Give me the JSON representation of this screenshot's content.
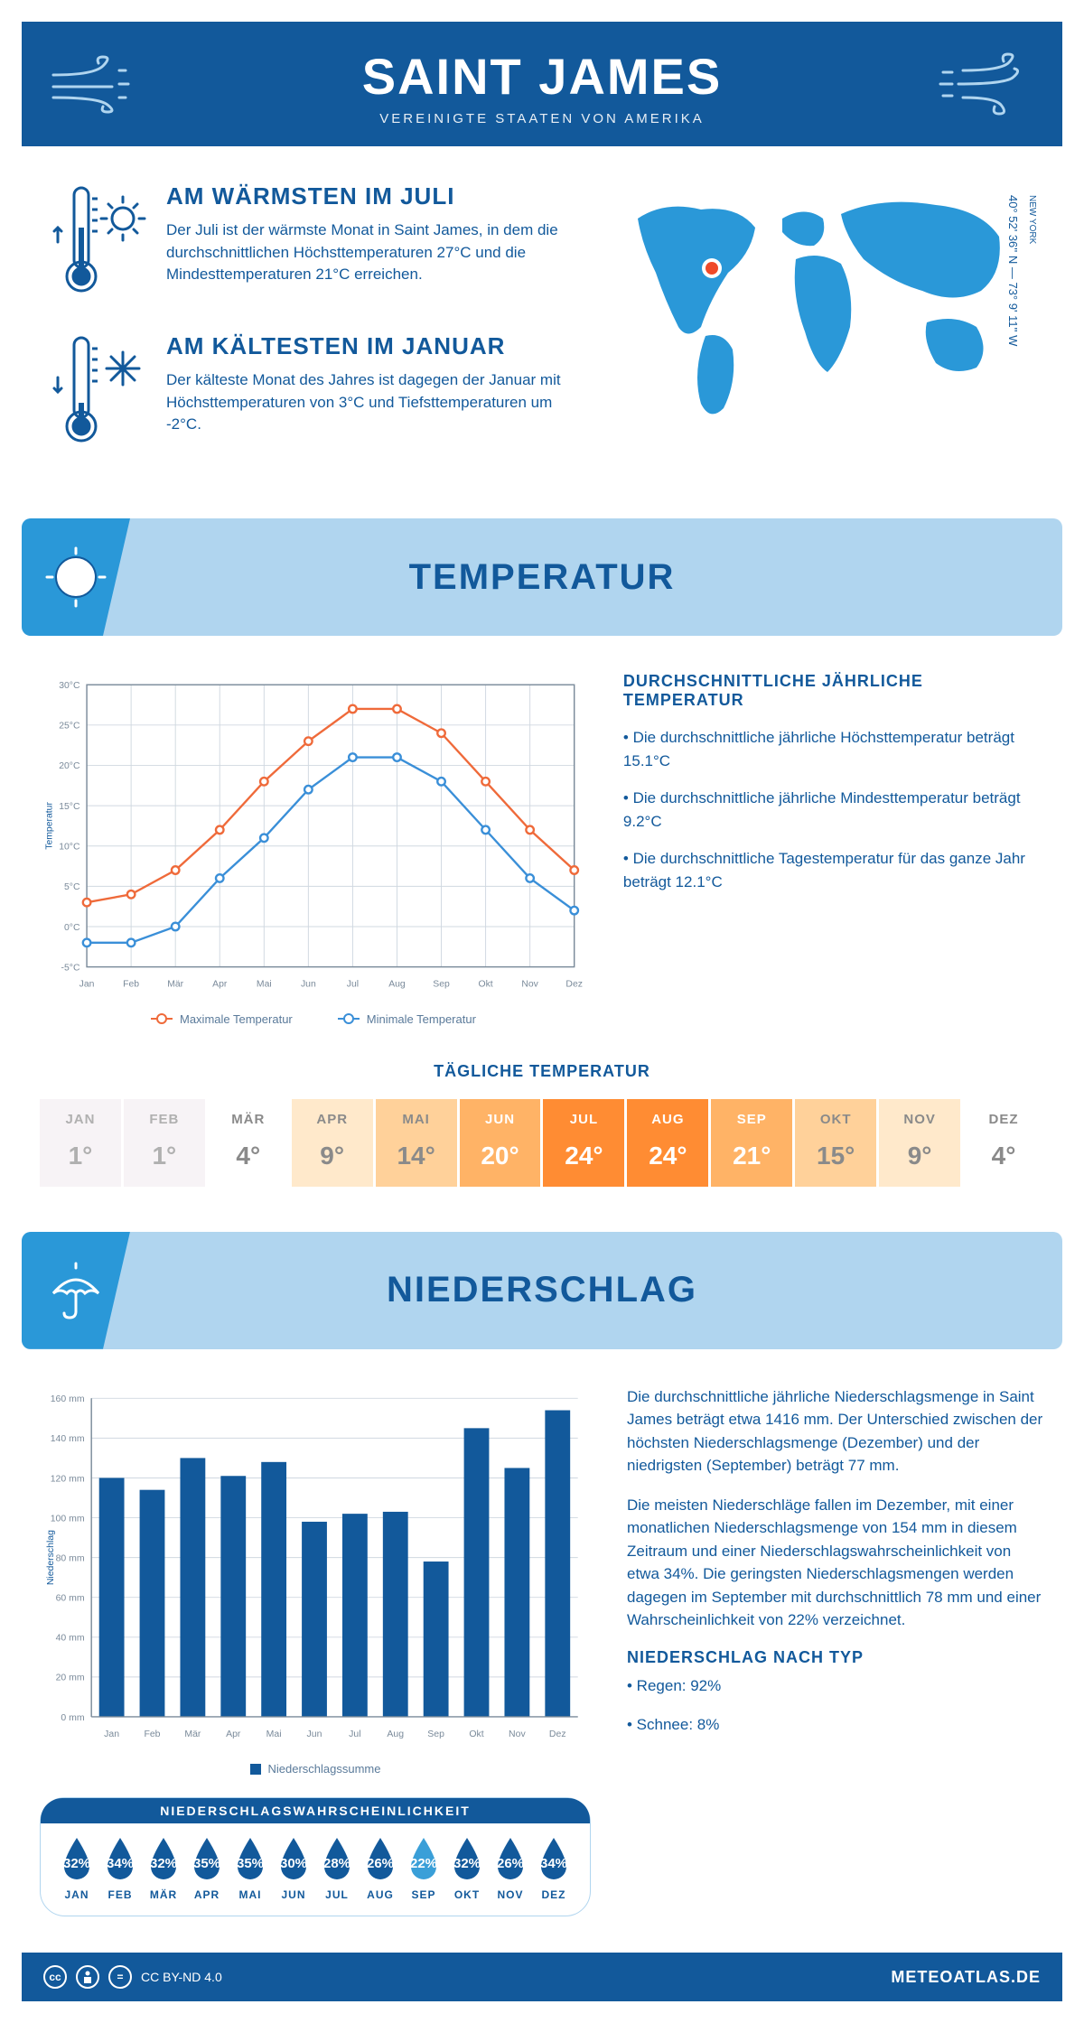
{
  "header": {
    "title": "SAINT JAMES",
    "subtitle": "VEREINIGTE STAATEN VON AMERIKA"
  },
  "coords": {
    "lat": "40° 52' 36'' N — 73° 9' 11'' W",
    "state": "NEW YORK"
  },
  "warmest": {
    "title": "AM WÄRMSTEN IM JULI",
    "text": "Der Juli ist der wärmste Monat in Saint James, in dem die durchschnittlichen Höchsttemperaturen 27°C und die Mindesttemperaturen 21°C erreichen."
  },
  "coldest": {
    "title": "AM KÄLTESTEN IM JANUAR",
    "text": "Der kälteste Monat des Jahres ist dagegen der Januar mit Höchsttemperaturen von 3°C und Tiefsttemperaturen um -2°C."
  },
  "temperature": {
    "section_title": "TEMPERATUR",
    "avg_title": "DURCHSCHNITTLICHE JÄHRLICHE TEMPERATUR",
    "bullets": [
      "• Die durchschnittliche jährliche Höchsttemperatur beträgt 15.1°C",
      "• Die durchschnittliche jährliche Mindesttemperatur beträgt 9.2°C",
      "• Die durchschnittliche Tagestemperatur für das ganze Jahr beträgt 12.1°C"
    ],
    "chart": {
      "type": "line",
      "months": [
        "Jan",
        "Feb",
        "Mär",
        "Apr",
        "Mai",
        "Jun",
        "Jul",
        "Aug",
        "Sep",
        "Okt",
        "Nov",
        "Dez"
      ],
      "max": [
        3,
        4,
        7,
        12,
        18,
        23,
        27,
        27,
        24,
        18,
        12,
        7
      ],
      "min": [
        -2,
        -2,
        0,
        6,
        11,
        17,
        21,
        21,
        18,
        12,
        6,
        2
      ],
      "ylim": [
        -5,
        30
      ],
      "ytick_step": 5,
      "max_color": "#ef6a3a",
      "min_color": "#3a8fd8",
      "grid_color": "#d0d8e0",
      "ylabel": "Temperatur",
      "max_label": "Maximale Temperatur",
      "min_label": "Minimale Temperatur"
    },
    "daily": {
      "title": "TÄGLICHE TEMPERATUR",
      "months": [
        "JAN",
        "FEB",
        "MÄR",
        "APR",
        "MAI",
        "JUN",
        "JUL",
        "AUG",
        "SEP",
        "OKT",
        "NOV",
        "DEZ"
      ],
      "values": [
        "1°",
        "1°",
        "4°",
        "9°",
        "14°",
        "20°",
        "24°",
        "24°",
        "21°",
        "15°",
        "9°",
        "4°"
      ],
      "bg_colors": [
        "#f7f3f6",
        "#f7f3f6",
        "#ffffff",
        "#ffe9cb",
        "#ffd19a",
        "#ffb366",
        "#ff8c33",
        "#ff8c33",
        "#ffb366",
        "#ffd19a",
        "#ffe9cb",
        "#ffffff"
      ],
      "text_colors": [
        "#b0b0b0",
        "#b0b0b0",
        "#8a8a8a",
        "#8a8a8a",
        "#8a8a8a",
        "#ffffff",
        "#ffffff",
        "#ffffff",
        "#ffffff",
        "#8a8a8a",
        "#8a8a8a",
        "#8a8a8a"
      ]
    }
  },
  "precipitation": {
    "section_title": "NIEDERSCHLAG",
    "text1": "Die durchschnittliche jährliche Niederschlagsmenge in Saint James beträgt etwa 1416 mm. Der Unterschied zwischen der höchsten Niederschlagsmenge (Dezember) und der niedrigsten (September) beträgt 77 mm.",
    "text2": "Die meisten Niederschläge fallen im Dezember, mit einer monatlichen Niederschlagsmenge von 154 mm in diesem Zeitraum und einer Niederschlagswahrscheinlichkeit von etwa 34%. Die geringsten Niederschlagsmengen werden dagegen im September mit durchschnittlich 78 mm und einer Wahrscheinlichkeit von 22% verzeichnet.",
    "by_type_title": "NIEDERSCHLAG NACH TYP",
    "by_type": [
      "• Regen: 92%",
      "• Schnee: 8%"
    ],
    "chart": {
      "type": "bar",
      "months": [
        "Jan",
        "Feb",
        "Mär",
        "Apr",
        "Mai",
        "Jun",
        "Jul",
        "Aug",
        "Sep",
        "Okt",
        "Nov",
        "Dez"
      ],
      "values": [
        120,
        114,
        130,
        121,
        128,
        98,
        102,
        103,
        78,
        145,
        125,
        154
      ],
      "ylim": [
        0,
        160
      ],
      "ytick_step": 20,
      "bar_color": "#12599b",
      "grid_color": "#d0d8e0",
      "ylabel": "Niederschlag",
      "legend": "Niederschlagssumme"
    },
    "prob": {
      "title": "NIEDERSCHLAGSWAHRSCHEINLICHKEIT",
      "months": [
        "JAN",
        "FEB",
        "MÄR",
        "APR",
        "MAI",
        "JUN",
        "JUL",
        "AUG",
        "SEP",
        "OKT",
        "NOV",
        "DEZ"
      ],
      "values": [
        "32%",
        "34%",
        "32%",
        "35%",
        "35%",
        "30%",
        "28%",
        "26%",
        "22%",
        "32%",
        "26%",
        "34%"
      ],
      "colors": [
        "#12599b",
        "#12599b",
        "#12599b",
        "#12599b",
        "#12599b",
        "#12599b",
        "#12599b",
        "#12599b",
        "#3a9fd8",
        "#12599b",
        "#12599b",
        "#12599b"
      ]
    }
  },
  "footer": {
    "license": "CC BY-ND 4.0",
    "site": "METEOATLAS.DE"
  }
}
